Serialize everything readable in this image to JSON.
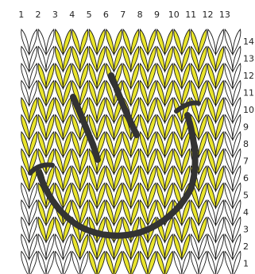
{
  "columns": [
    "1",
    "2",
    "3",
    "4",
    "5",
    "6",
    "7",
    "8",
    "9",
    "10",
    "11",
    "12",
    "13"
  ],
  "rows": [
    "1",
    "2",
    "3",
    "4",
    "5",
    "6",
    "7",
    "8",
    "9",
    "10",
    "11",
    "12",
    "13",
    "14"
  ],
  "colors": {
    "yellow": "#e9e52b",
    "white": "#ffffff",
    "outline": "#1a1a1a",
    "feature": "#333333"
  },
  "stitch_colors": [
    "WWYYYYYYYYYWW",
    "WWYYYYYYYYYYW",
    "WYYYYYYYYYYYW",
    "WYYYYYYYYYYYW",
    "YYYYYYYYYYYYW",
    "YYYYYYYYYYYYW",
    "YYYYYYYYYYYYW",
    "YYYYYYYYYYYYW",
    "YYYYYYYYYYYYW",
    "WYYYYYYYYYYYW",
    "WYYYYYYYYYYWW",
    "WYYYYYYYYYYWW",
    "WWWYYYYYYYWWW",
    "WWWWYYYYYWWWW"
  ],
  "features": [
    "left-eye",
    "right-eye",
    "smile",
    "left-dimple",
    "right-dimple"
  ]
}
